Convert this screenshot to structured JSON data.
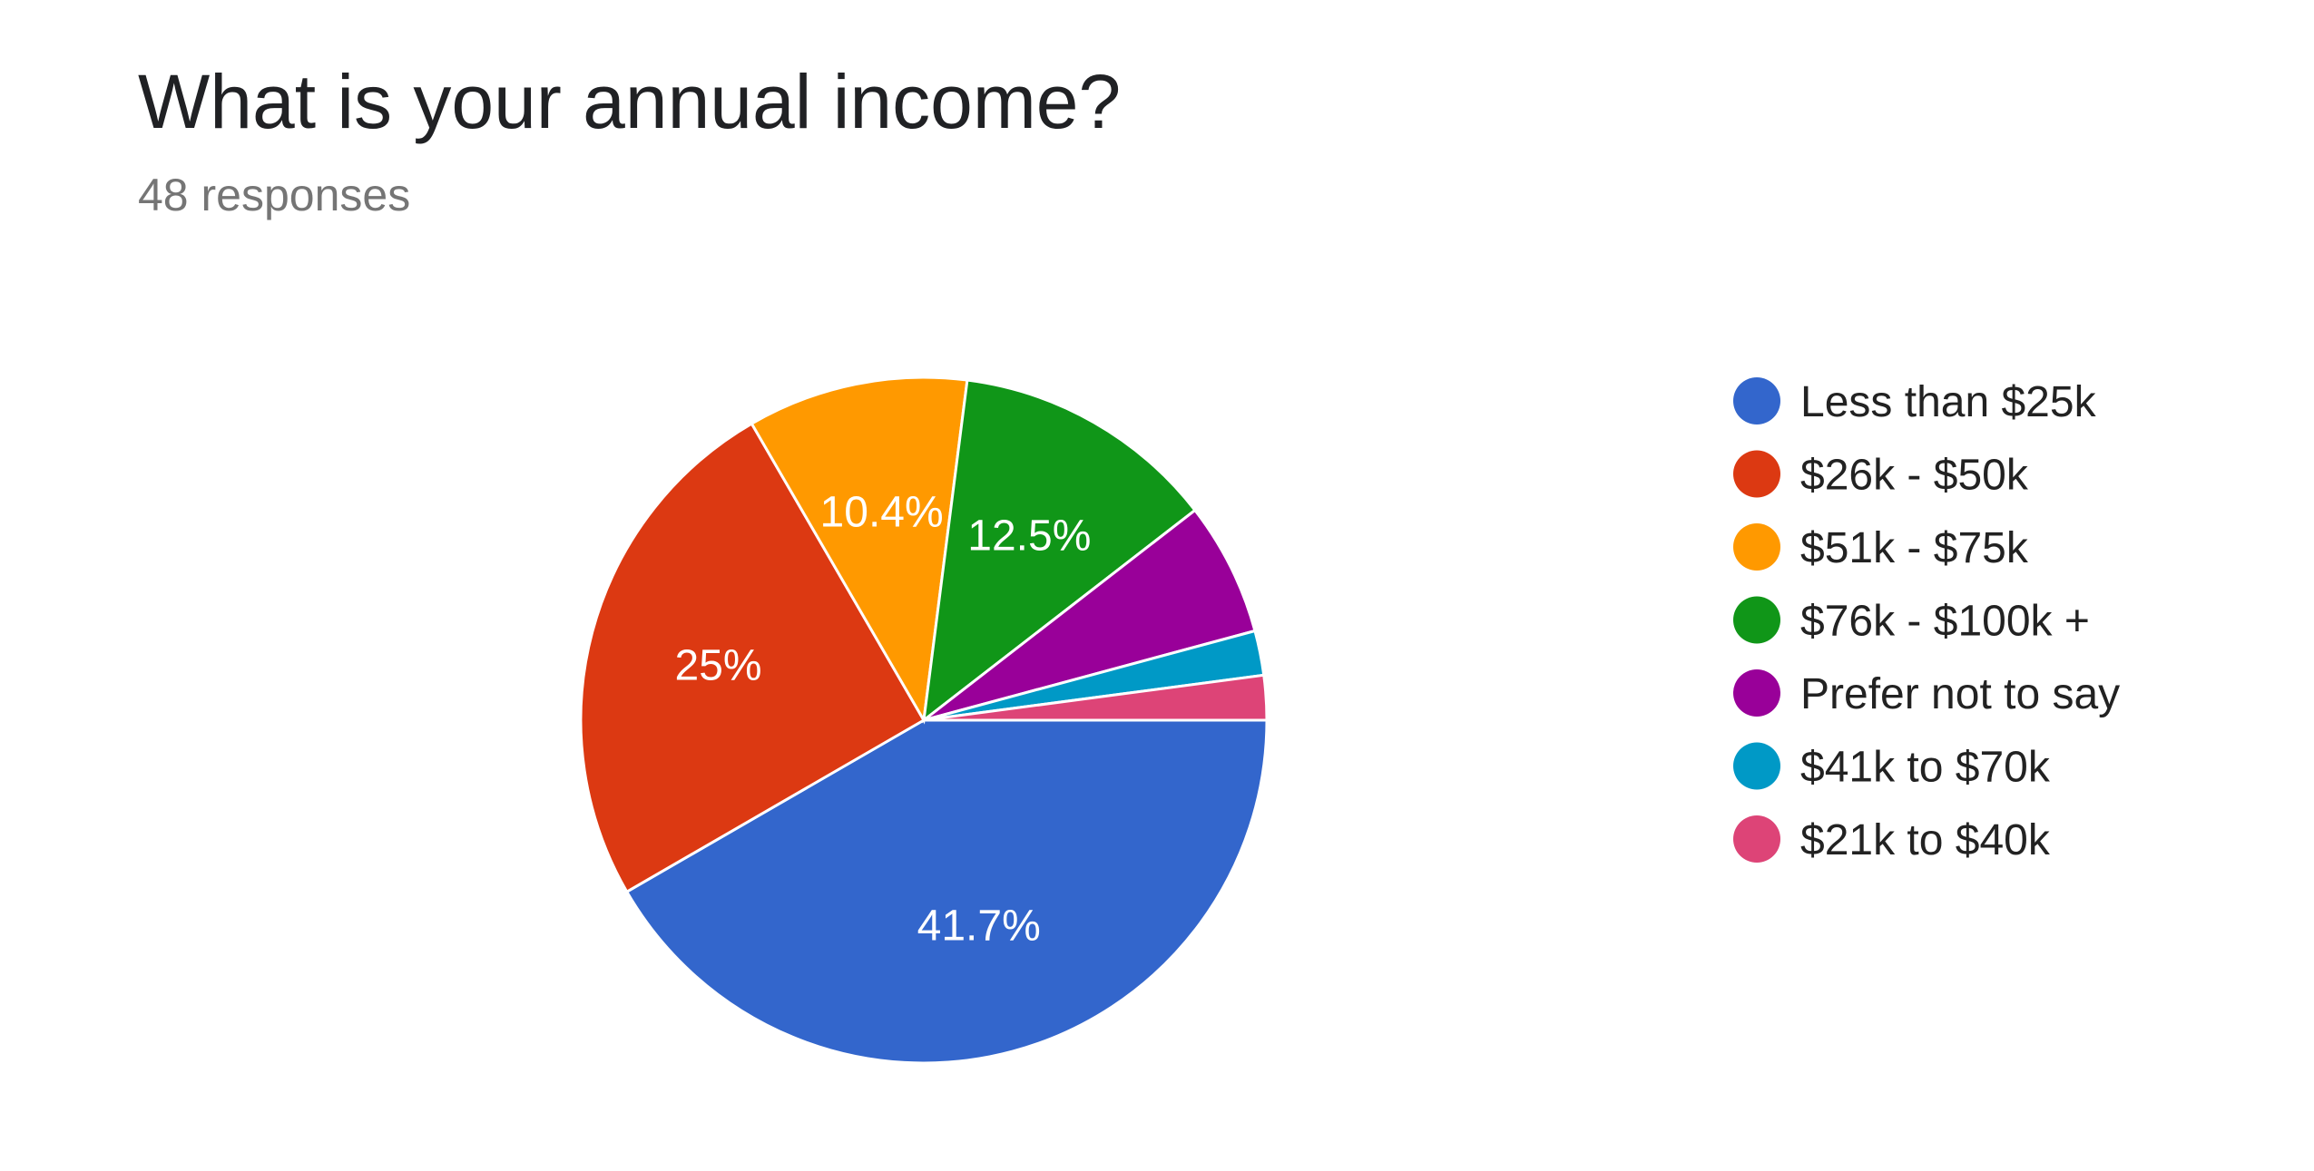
{
  "header": {
    "title": "What is your annual income?",
    "subtitle": "48 responses"
  },
  "chart_data": {
    "type": "pie",
    "title": "What is your annual income?",
    "subtitle": "48 responses",
    "legend_position": "right",
    "slices": [
      {
        "label": "Less than $25k",
        "value": 41.7,
        "display": "41.7%",
        "color": "#3366cc"
      },
      {
        "label": "$26k - $50k",
        "value": 25.0,
        "display": "25%",
        "color": "#dc3912"
      },
      {
        "label": "$51k - $75k",
        "value": 10.4,
        "display": "10.4%",
        "color": "#ff9900"
      },
      {
        "label": "$76k - $100k +",
        "value": 12.5,
        "display": "12.5%",
        "color": "#109618"
      },
      {
        "label": "Prefer not to say",
        "value": 6.3,
        "display": "",
        "color": "#990099"
      },
      {
        "label": "$41k to $70k",
        "value": 2.1,
        "display": "",
        "color": "#0099c6"
      },
      {
        "label": "$21k to $40k",
        "value": 2.1,
        "display": "",
        "color": "#dd4477"
      }
    ]
  }
}
